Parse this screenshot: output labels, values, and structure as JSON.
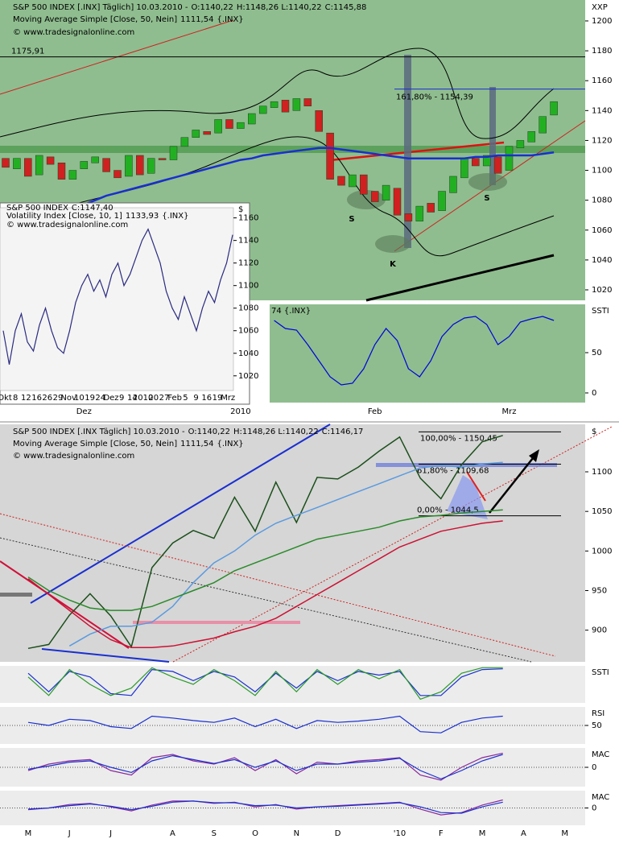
{
  "chart_data": [
    {
      "type": "candlestick",
      "headers": [
        [
          {
            "text": "S&P 500 INDEX [.INX] Täglich] 10.03.2010 -",
            "color": "#000000"
          },
          {
            "text": "O:1140,22",
            "color": "#cc0000"
          },
          {
            "text": "H:1148,26 L:1140,22",
            "color": "#000000"
          },
          {
            "text": "C:1145,88",
            "color": "#008800"
          }
        ],
        [
          {
            "text": "Moving Average Simple [Close, 50, Nein]",
            "color": "#000000"
          },
          {
            "text": "1111,54",
            "color": "#0000cc"
          },
          {
            "text": "{.INX}",
            "color": "#000000"
          }
        ],
        [
          {
            "text": "© www.tradesignalonline.com",
            "color": "#000000"
          }
        ]
      ],
      "y_axis_label": "XXP",
      "categories": [
        null,
        null,
        null,
        null,
        null,
        null,
        null,
        "Dez",
        null,
        null,
        null,
        null,
        null,
        null,
        null,
        null,
        null,
        null,
        null,
        null,
        null,
        "2010",
        null,
        null,
        null,
        null,
        null,
        null,
        null,
        null,
        null,
        null,
        null,
        "Feb",
        null,
        null,
        null,
        null,
        null,
        null,
        null,
        null,
        null,
        null,
        null,
        "Mrz",
        null,
        null,
        null,
        null
      ],
      "open": [
        1108,
        1101,
        1108,
        1097,
        1109,
        1105,
        1094,
        1101,
        1105,
        1108,
        1100,
        1096,
        1110,
        1098,
        1108,
        1107,
        1116,
        1122,
        1126,
        1125,
        1134,
        1128,
        1131,
        1138,
        1142,
        1147,
        1140,
        1148,
        1140,
        1125,
        1096,
        1089,
        1097,
        1086,
        1080,
        1088,
        1071,
        1066,
        1078,
        1073,
        1085,
        1095,
        1108,
        1103,
        1109,
        1100,
        1115,
        1119,
        1125,
        1137
      ],
      "close": [
        1102,
        1108,
        1096,
        1110,
        1104,
        1094,
        1100,
        1106,
        1109,
        1099,
        1095,
        1110,
        1097,
        1108,
        1107,
        1116,
        1122,
        1127,
        1124,
        1134,
        1128,
        1132,
        1138,
        1143,
        1146,
        1139,
        1148,
        1143,
        1126,
        1094,
        1090,
        1097,
        1084,
        1079,
        1090,
        1070,
        1066,
        1076,
        1072,
        1086,
        1096,
        1108,
        1103,
        1110,
        1098,
        1116,
        1120,
        1126,
        1136,
        1146
      ],
      "up_color": "#22b022",
      "down_color": "#d02020",
      "series": [
        {
          "color": "#1a2fd0",
          "values": [
            null,
            null,
            null,
            null,
            null,
            null,
            1075,
            1077,
            1080,
            1083,
            1085,
            1087,
            1089,
            1091,
            1093,
            1095,
            1097,
            1099,
            1101,
            1103,
            1105,
            1107,
            1108,
            1110,
            1111,
            1112,
            1113,
            1114,
            1115,
            1115,
            1114,
            1113,
            1112,
            1111,
            1110,
            1109,
            1108,
            1108,
            1108,
            1108,
            1108,
            1108,
            1109,
            1109,
            1110,
            1110,
            1110,
            1110,
            1111,
            1112
          ]
        }
      ],
      "levels": [
        {
          "value": 1175.91,
          "label": "1175,91",
          "color": "#000000"
        },
        {
          "value": 1154.39,
          "label": "161,80% - 1154,39",
          "color": "#1a2fd0"
        }
      ],
      "annotations": [
        "S",
        "K",
        "S"
      ],
      "ylim": [
        1013,
        1214
      ],
      "yticks": [
        1020,
        1040,
        1060,
        1080,
        1100,
        1120,
        1140,
        1160,
        1180,
        1200
      ]
    },
    {
      "type": "line",
      "title": "SSTI",
      "subtitle": "74 {.INX}",
      "series": [
        {
          "color": "#0000dd",
          "values": [
            null,
            null,
            null,
            null,
            null,
            null,
            null,
            null,
            null,
            null,
            null,
            null,
            null,
            null,
            null,
            null,
            null,
            null,
            null,
            null,
            null,
            null,
            null,
            null,
            90,
            80,
            78,
            60,
            40,
            20,
            10,
            12,
            30,
            60,
            80,
            65,
            30,
            20,
            40,
            70,
            85,
            93,
            95,
            85,
            60,
            70,
            88,
            92,
            95,
            90
          ]
        }
      ],
      "ylim": [
        -12,
        110
      ],
      "yticks": [
        0,
        50
      ]
    },
    {
      "type": "line",
      "headers": [
        [
          {
            "text": "S&P 500 INDEX",
            "color": "#000000"
          },
          {
            "text": "C:1147,40",
            "color": "#008800"
          }
        ],
        [
          {
            "text": "Volatility Index [Close, 10, 1]",
            "color": "#000000"
          },
          {
            "text": "1133,93",
            "color": "#0000cc"
          },
          {
            "text": "{.INX}",
            "color": "#000000"
          }
        ],
        [
          {
            "text": "© www.tradesignalonline.com",
            "color": "#000000"
          }
        ]
      ],
      "y_axis_label": "$",
      "series": [
        {
          "color": "#2a2a80",
          "values": [
            1060,
            1030,
            1060,
            1075,
            1050,
            1042,
            1065,
            1080,
            1060,
            1045,
            1040,
            1060,
            1085,
            1100,
            1110,
            1095,
            1105,
            1090,
            1110,
            1120,
            1100,
            1110,
            1125,
            1140,
            1150,
            1135,
            1120,
            1095,
            1080,
            1070,
            1090,
            1075,
            1060,
            1080,
            1095,
            1085,
            1105,
            1120,
            1145
          ]
        }
      ],
      "xtick_labels": [
        "Okt",
        "8",
        "12",
        "16",
        "26",
        "29",
        "Nov",
        "10",
        "19",
        "24",
        "Dez",
        "9",
        "14",
        "2010",
        "20",
        "27",
        "Feb",
        "5",
        "9",
        "16",
        "19",
        "Mrz"
      ],
      "ylim": [
        1007,
        1169
      ],
      "yticks": [
        1020,
        1040,
        1060,
        1080,
        1100,
        1120,
        1140,
        1160
      ]
    },
    {
      "type": "line",
      "headers": [
        [
          {
            "text": "S&P 500 INDEX [.INX  Täglich] 10.03.2010 -",
            "color": "#000000"
          },
          {
            "text": "O:1140,22",
            "color": "#cc0000"
          },
          {
            "text": "H:1148,26 L:1140,22",
            "color": "#000000"
          },
          {
            "text": "C:1146,17",
            "color": "#008800"
          }
        ],
        [
          {
            "text": "Moving Average Simple [Close, 50, Nein]",
            "color": "#000000"
          },
          {
            "text": "1111,54",
            "color": "#5a9ae0"
          },
          {
            "text": "{.INX}",
            "color": "#000000"
          }
        ],
        [
          {
            "text": "© www.tradesignalonline.com",
            "color": "#000000"
          }
        ]
      ],
      "y_axis_label": "$",
      "categories": [
        "M",
        null,
        "J",
        null,
        "J",
        null,
        null,
        "A",
        null,
        "S",
        null,
        "O",
        null,
        "N",
        null,
        "D",
        null,
        null,
        "'10",
        null,
        "F",
        null,
        "M",
        null,
        "A",
        null,
        "M",
        null
      ],
      "series": [
        {
          "color": "#1c4f1c",
          "values": [
            877,
            882,
            919,
            946,
            918,
            879,
            979,
            1010,
            1026,
            1016,
            1068,
            1025,
            1087,
            1036,
            1093,
            1091,
            1106,
            1126,
            1144,
            1092,
            1066,
            1109,
            1138,
            1146,
            null,
            null,
            null,
            null
          ]
        },
        {
          "color": "#5a9ae0",
          "values": [
            null,
            null,
            880,
            895,
            905,
            905,
            910,
            930,
            960,
            985,
            1000,
            1020,
            1035,
            1045,
            1055,
            1065,
            1075,
            1085,
            1095,
            1105,
            1108,
            1106,
            1110,
            1112,
            null,
            null,
            null,
            null
          ]
        },
        {
          "color": "#2a8a2a",
          "values": [
            967,
            950,
            938,
            928,
            925,
            925,
            930,
            940,
            950,
            960,
            975,
            985,
            995,
            1005,
            1015,
            1020,
            1025,
            1030,
            1038,
            1043,
            1045,
            1048,
            1050,
            1052,
            null,
            null,
            null,
            null
          ]
        },
        {
          "color": "#cc1133",
          "values": [
            965,
            945,
            925,
            905,
            888,
            878,
            878,
            880,
            885,
            890,
            898,
            905,
            915,
            930,
            945,
            960,
            975,
            990,
            1005,
            1015,
            1025,
            1030,
            1035,
            1038,
            null,
            null,
            null,
            null
          ]
        }
      ],
      "levels": [
        {
          "value": 1150.45,
          "label": "100,00% - 1150,45",
          "color": "#000000"
        },
        {
          "value": 1109.68,
          "label": "61,80% - 1109,68",
          "color": "#000000"
        },
        {
          "value": 1044.5,
          "label": "0,00% - 1044,5",
          "color": "#000000"
        }
      ],
      "ylim": [
        860,
        1160
      ],
      "yticks": [
        900,
        950,
        1000,
        1050,
        1100
      ]
    },
    {
      "type": "line",
      "title": "SSTI",
      "series": [
        {
          "color": "#1a2fd0",
          "values": [
            80,
            30,
            85,
            70,
            25,
            20,
            90,
            85,
            60,
            85,
            70,
            30,
            80,
            40,
            85,
            60,
            85,
            75,
            85,
            20,
            20,
            70,
            90,
            92,
            null,
            null,
            null,
            null
          ]
        },
        {
          "color": "#2a9a2a",
          "values": [
            70,
            20,
            90,
            50,
            20,
            40,
            95,
            70,
            50,
            90,
            60,
            20,
            85,
            30,
            90,
            50,
            90,
            65,
            90,
            10,
            30,
            80,
            95,
            95,
            null,
            null,
            null,
            null
          ]
        }
      ],
      "ylim": [
        0,
        100
      ]
    },
    {
      "type": "line",
      "title": "RSI",
      "series": [
        {
          "color": "#1a2fd0",
          "values": [
            55,
            50,
            60,
            58,
            48,
            45,
            65,
            62,
            58,
            55,
            62,
            48,
            60,
            45,
            58,
            55,
            57,
            60,
            65,
            40,
            38,
            55,
            62,
            65,
            null,
            null,
            null,
            null
          ]
        }
      ],
      "ylim": [
        20,
        80
      ],
      "yticks": [
        50
      ]
    },
    {
      "type": "line",
      "title": "MAC",
      "series": [
        {
          "color": "#8a2a9a",
          "values": [
            -5,
            5,
            10,
            12,
            -5,
            -12,
            15,
            20,
            10,
            5,
            15,
            -5,
            12,
            -10,
            8,
            5,
            10,
            12,
            15,
            -12,
            -20,
            0,
            15,
            22,
            null,
            null,
            null,
            null
          ]
        },
        {
          "color": "#1a2fd0",
          "values": [
            -3,
            2,
            8,
            10,
            0,
            -8,
            10,
            18,
            12,
            6,
            12,
            0,
            10,
            -5,
            5,
            5,
            8,
            10,
            14,
            -5,
            -18,
            -5,
            10,
            20,
            null,
            null,
            null,
            null
          ]
        }
      ],
      "ylim": [
        -30,
        30
      ],
      "yticks": [
        0
      ]
    },
    {
      "type": "line",
      "title": "MAC",
      "series": [
        {
          "color": "#8a2a9a",
          "values": [
            -3,
            0,
            6,
            8,
            2,
            -5,
            5,
            12,
            12,
            8,
            10,
            2,
            6,
            -2,
            2,
            4,
            6,
            8,
            10,
            -2,
            -12,
            -8,
            5,
            14,
            null,
            null,
            null,
            null
          ]
        },
        {
          "color": "#1a2fd0",
          "values": [
            -2,
            0,
            4,
            7,
            3,
            -3,
            3,
            10,
            12,
            9,
            9,
            4,
            5,
            0,
            2,
            3,
            5,
            7,
            9,
            2,
            -8,
            -9,
            2,
            10,
            null,
            null,
            null,
            null
          ]
        }
      ],
      "ylim": [
        -30,
        30
      ],
      "yticks": [
        0
      ]
    }
  ]
}
